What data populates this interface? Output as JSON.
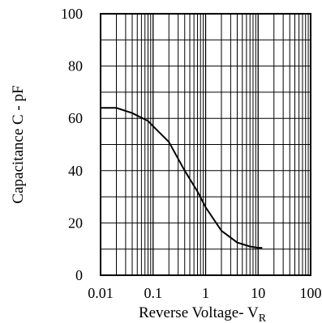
{
  "chart_data": {
    "type": "line",
    "xlabel": "Reverse Voltage- V",
    "xlabel_subscript": "R",
    "ylabel": "Capacitance   C - pF",
    "x_scale": "log",
    "xlim": [
      0.01,
      100
    ],
    "ylim": [
      0,
      100
    ],
    "grid": true,
    "x_ticks": [
      0.01,
      0.1,
      1,
      10,
      100
    ],
    "x_tick_labels": [
      "0.01",
      "0.1",
      "1",
      "10",
      "100"
    ],
    "y_ticks": [
      0,
      20,
      40,
      60,
      80,
      100
    ],
    "y_tick_labels": [
      "0",
      "20",
      "40",
      "60",
      "80",
      "100"
    ],
    "series": [
      {
        "x": [
          0.01,
          0.02,
          0.04,
          0.08,
          0.1,
          0.2,
          0.4,
          0.7,
          1,
          2,
          4,
          7,
          10,
          12
        ],
        "y": [
          64,
          64,
          62,
          59,
          57,
          51,
          40,
          32,
          26,
          17,
          12.5,
          11,
          10.5,
          10.5
        ]
      }
    ]
  },
  "colors": {
    "line": "#000000",
    "grid": "#000000",
    "background": "#ffffff"
  }
}
